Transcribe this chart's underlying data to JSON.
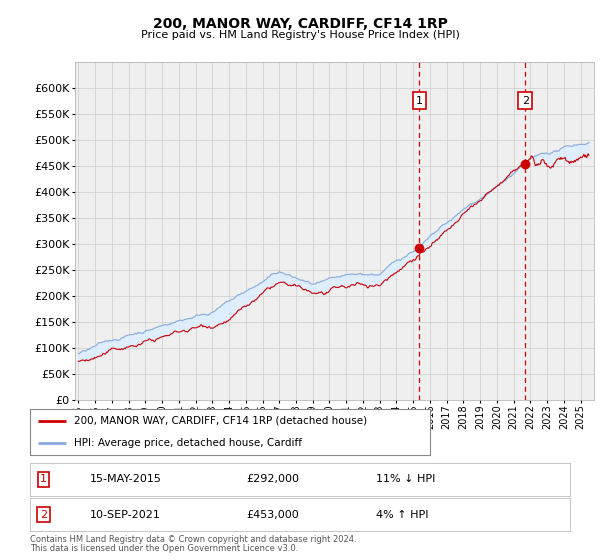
{
  "title": "200, MANOR WAY, CARDIFF, CF14 1RP",
  "subtitle": "Price paid vs. HM Land Registry's House Price Index (HPI)",
  "ylim": [
    0,
    650000
  ],
  "yticks": [
    0,
    50000,
    100000,
    150000,
    200000,
    250000,
    300000,
    350000,
    400000,
    450000,
    500000,
    550000,
    600000
  ],
  "xlim_start": 1994.8,
  "xlim_end": 2025.8,
  "sale1_year": 2015.37,
  "sale1_price": 292000,
  "sale1_label": "1",
  "sale1_date": "15-MAY-2015",
  "sale1_hpi_pct": "11% ↓ HPI",
  "sale2_year": 2021.69,
  "sale2_price": 453000,
  "sale2_label": "2",
  "sale2_date": "10-SEP-2021",
  "sale2_hpi_pct": "4% ↑ HPI",
  "legend_property": "200, MANOR WAY, CARDIFF, CF14 1RP (detached house)",
  "legend_hpi": "HPI: Average price, detached house, Cardiff",
  "footnote1": "Contains HM Land Registry data © Crown copyright and database right 2024.",
  "footnote2": "This data is licensed under the Open Government Licence v3.0.",
  "line_color_property": "#cc0000",
  "line_color_hpi": "#88aadd",
  "fill_color": "#ddeeff",
  "background_color": "#efefef",
  "grid_color": "#cccccc",
  "box_outline_color": "#cc0000"
}
